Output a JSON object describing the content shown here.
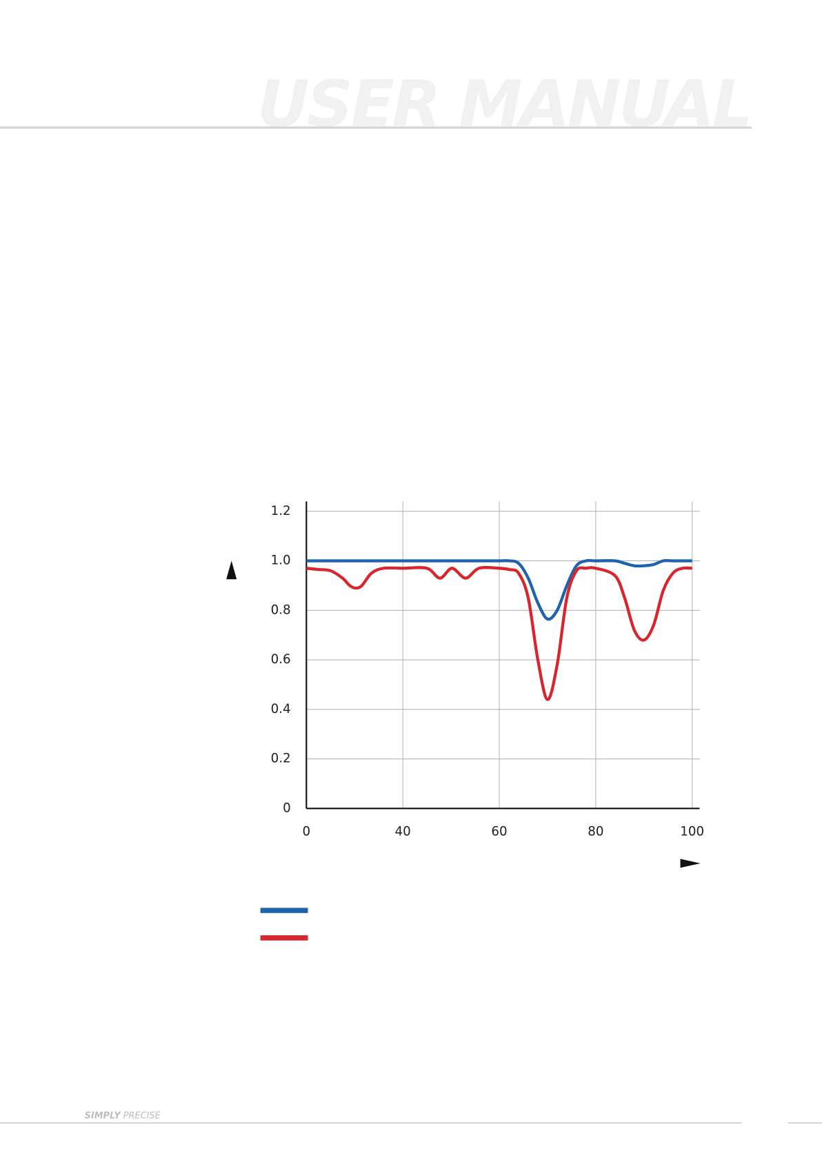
{
  "header": {
    "title": "USER MANUAL"
  },
  "footer": {
    "brand": "SIMPLY",
    "tagline": "PRECISE"
  },
  "chart_data": {
    "type": "line",
    "x": [
      0,
      5,
      10,
      15,
      18,
      20.5,
      23,
      27,
      32,
      40,
      45,
      47.7,
      50.2,
      53,
      55.8,
      60,
      62,
      64,
      66,
      68,
      70,
      72,
      74,
      76,
      78,
      80,
      84,
      86,
      88,
      90,
      92,
      94,
      96,
      98,
      100
    ],
    "series": [
      {
        "color": "#1f63ad",
        "values": [
          1,
          1,
          1,
          1,
          1,
          1,
          1,
          1,
          1,
          1,
          1,
          1,
          1,
          1,
          1,
          1,
          1,
          0.99,
          0.93,
          0.83,
          0.765,
          0.8,
          0.9,
          0.98,
          1,
          1,
          1,
          0.99,
          0.98,
          0.98,
          0.985,
          1,
          1,
          1,
          1
        ]
      },
      {
        "color": "#d8262e",
        "values": [
          0.97,
          0.965,
          0.96,
          0.93,
          0.9,
          0.89,
          0.9,
          0.95,
          0.97,
          0.97,
          0.97,
          0.93,
          0.97,
          0.93,
          0.97,
          0.97,
          0.965,
          0.95,
          0.85,
          0.6,
          0.44,
          0.58,
          0.85,
          0.96,
          0.97,
          0.97,
          0.94,
          0.85,
          0.72,
          0.68,
          0.74,
          0.88,
          0.95,
          0.97,
          0.97
        ]
      }
    ],
    "xlim": [
      0,
      100
    ],
    "xticks": [
      0,
      40,
      60,
      80,
      100
    ],
    "ylim": [
      0,
      1.24
    ],
    "yticks": [
      0,
      0.2,
      0.4,
      0.6,
      0.8,
      {
        "value": 1,
        "label": "1.0"
      },
      1.2
    ],
    "grid": true
  }
}
